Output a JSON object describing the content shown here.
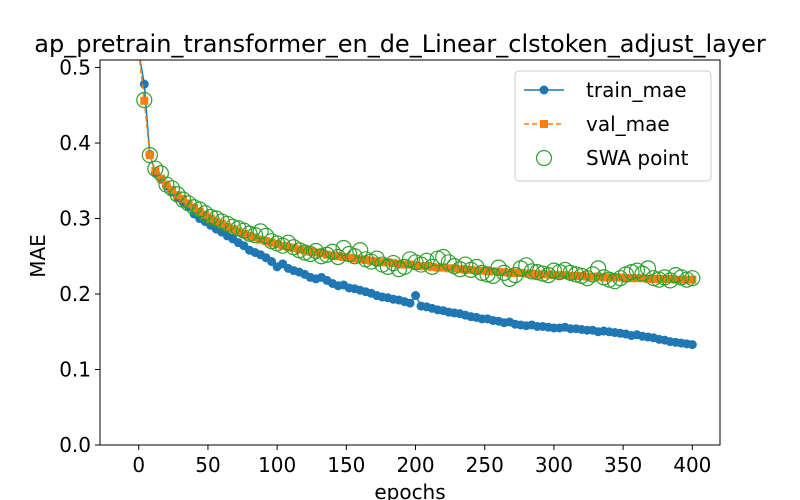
{
  "chart_data": {
    "type": "line",
    "title": "ap_pretrain_transformer_en_de_Linear_clstoken_adjust_layer",
    "xlabel": "epochs",
    "ylabel": "MAE",
    "xlim": [
      -28,
      420
    ],
    "ylim": [
      0,
      0.51
    ],
    "xticks": [
      0,
      50,
      100,
      150,
      200,
      250,
      300,
      350,
      400
    ],
    "yticks": [
      0.0,
      0.1,
      0.2,
      0.3,
      0.4,
      0.5
    ],
    "ytick_labels": [
      "0.0",
      "0.1",
      "0.2",
      "0.3",
      "0.4",
      "0.5"
    ],
    "legend_position": "top-right",
    "x_step": 4,
    "series": [
      {
        "name": "train_mae",
        "color": "#1f77b4",
        "marker": "circle",
        "line": "solid",
        "values": [
          0.52,
          0.478,
          0.385,
          0.36,
          0.352,
          0.343,
          0.335,
          0.328,
          0.322,
          0.316,
          0.306,
          0.3,
          0.296,
          0.291,
          0.286,
          0.282,
          0.277,
          0.273,
          0.268,
          0.264,
          0.258,
          0.255,
          0.252,
          0.248,
          0.243,
          0.236,
          0.24,
          0.234,
          0.231,
          0.229,
          0.226,
          0.222,
          0.22,
          0.222,
          0.218,
          0.214,
          0.211,
          0.212,
          0.208,
          0.207,
          0.205,
          0.203,
          0.201,
          0.198,
          0.196,
          0.195,
          0.193,
          0.192,
          0.19,
          0.188,
          0.198,
          0.184,
          0.183,
          0.181,
          0.179,
          0.178,
          0.176,
          0.175,
          0.174,
          0.172,
          0.17,
          0.169,
          0.167,
          0.167,
          0.165,
          0.164,
          0.162,
          0.163,
          0.16,
          0.159,
          0.158,
          0.159,
          0.157,
          0.157,
          0.156,
          0.155,
          0.155,
          0.156,
          0.154,
          0.154,
          0.153,
          0.152,
          0.152,
          0.15,
          0.151,
          0.15,
          0.149,
          0.148,
          0.147,
          0.145,
          0.146,
          0.144,
          0.143,
          0.142,
          0.14,
          0.139,
          0.137,
          0.136,
          0.135,
          0.134,
          0.133
        ]
      },
      {
        "name": "val_mae",
        "color": "#ff7f0e",
        "marker": "square",
        "line": "dashed",
        "values": [
          0.52,
          0.456,
          0.384,
          0.363,
          0.353,
          0.345,
          0.338,
          0.331,
          0.326,
          0.32,
          0.314,
          0.309,
          0.305,
          0.3,
          0.296,
          0.293,
          0.289,
          0.286,
          0.283,
          0.28,
          0.277,
          0.275,
          0.272,
          0.27,
          0.268,
          0.266,
          0.264,
          0.262,
          0.261,
          0.259,
          0.258,
          0.256,
          0.255,
          0.254,
          0.252,
          0.251,
          0.25,
          0.249,
          0.248,
          0.247,
          0.246,
          0.245,
          0.244,
          0.243,
          0.242,
          0.242,
          0.241,
          0.24,
          0.239,
          0.239,
          0.238,
          0.237,
          0.237,
          0.236,
          0.235,
          0.235,
          0.234,
          0.234,
          0.233,
          0.232,
          0.232,
          0.231,
          0.231,
          0.23,
          0.23,
          0.229,
          0.229,
          0.228,
          0.228,
          0.228,
          0.227,
          0.227,
          0.226,
          0.226,
          0.226,
          0.225,
          0.225,
          0.225,
          0.224,
          0.224,
          0.224,
          0.223,
          0.223,
          0.223,
          0.222,
          0.222,
          0.222,
          0.222,
          0.221,
          0.221,
          0.221,
          0.221,
          0.22,
          0.22,
          0.22,
          0.22,
          0.22,
          0.219,
          0.219,
          0.219,
          0.219
        ]
      },
      {
        "name": "SWA point",
        "color": "#2ca02c",
        "marker": "open-circle",
        "line": "none",
        "values": [
          0.52,
          0.457,
          0.384,
          0.366,
          0.36,
          0.345,
          0.34,
          0.332,
          0.325,
          0.32,
          0.315,
          0.312,
          0.307,
          0.302,
          0.3,
          0.296,
          0.293,
          0.289,
          0.287,
          0.284,
          0.28,
          0.278,
          0.283,
          0.277,
          0.27,
          0.267,
          0.264,
          0.268,
          0.262,
          0.258,
          0.255,
          0.253,
          0.257,
          0.25,
          0.252,
          0.256,
          0.249,
          0.261,
          0.253,
          0.25,
          0.258,
          0.246,
          0.243,
          0.247,
          0.239,
          0.236,
          0.241,
          0.233,
          0.236,
          0.246,
          0.242,
          0.239,
          0.244,
          0.236,
          0.247,
          0.249,
          0.242,
          0.237,
          0.233,
          0.239,
          0.232,
          0.236,
          0.228,
          0.226,
          0.224,
          0.235,
          0.228,
          0.22,
          0.225,
          0.234,
          0.238,
          0.23,
          0.229,
          0.227,
          0.225,
          0.231,
          0.229,
          0.232,
          0.228,
          0.226,
          0.224,
          0.221,
          0.226,
          0.234,
          0.222,
          0.219,
          0.217,
          0.221,
          0.226,
          0.229,
          0.231,
          0.227,
          0.234,
          0.221,
          0.219,
          0.222,
          0.218,
          0.225,
          0.222,
          0.219,
          0.221
        ]
      }
    ]
  }
}
